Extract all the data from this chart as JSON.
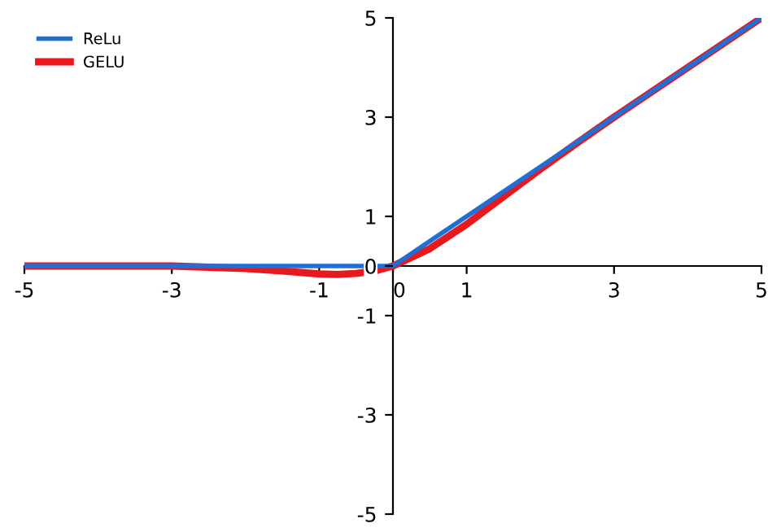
{
  "chart_data": {
    "type": "line",
    "series": [
      {
        "name": "ReLu",
        "color": "#1f6fd6",
        "x": [
          -5,
          0,
          5
        ],
        "values": [
          0,
          0,
          5
        ]
      },
      {
        "name": "GELU",
        "color": "#e8191c",
        "x": [
          -5,
          -4,
          -3,
          -2,
          -1.5,
          -1,
          -0.75,
          -0.5,
          -0.25,
          0,
          0.5,
          1,
          1.5,
          2,
          2.5,
          3,
          4,
          5
        ],
        "values": [
          0,
          0,
          0,
          -0.05,
          -0.1,
          -0.16,
          -0.17,
          -0.15,
          -0.1,
          0,
          0.35,
          0.84,
          1.4,
          1.95,
          2.48,
          3,
          4,
          5
        ]
      }
    ],
    "xlim": [
      -5,
      5
    ],
    "ylim": [
      -5,
      5
    ],
    "xticks": [
      -5,
      -3,
      -1,
      0,
      1,
      3,
      5
    ],
    "yticks": [
      -5,
      -3,
      -1,
      0,
      1,
      3,
      5
    ],
    "grid": false,
    "legend": "top left",
    "marker": "none",
    "line_style": "solid"
  }
}
